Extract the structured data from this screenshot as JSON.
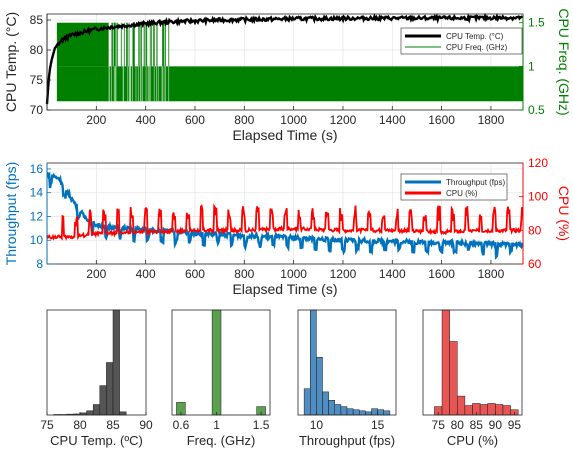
{
  "chart_data": [
    {
      "type": "line",
      "xlabel": "Elapsed Time (s)",
      "ylabel": "CPU Temp. (°C)",
      "ylabel_right": "CPU Freq. (GHz)",
      "xlim": [
        0,
        1930
      ],
      "ylim": [
        70,
        86
      ],
      "ylim_right": [
        0.5,
        1.6
      ],
      "xticks": [
        200,
        400,
        600,
        800,
        1000,
        1200,
        1400,
        1600,
        1800
      ],
      "yticks": [
        70,
        75,
        80,
        85
      ],
      "yticks_right": [
        0.5,
        1,
        1.5
      ],
      "grid": true,
      "legend": "top-right",
      "series": [
        {
          "name": "CPU Temp. (°C)",
          "color": "#000000",
          "axis": "left",
          "x": [
            0,
            5,
            10,
            20,
            30,
            45,
            60,
            80,
            100,
            150,
            200,
            250,
            300,
            400,
            500,
            700,
            1000,
            1300,
            1600,
            1930
          ],
          "y": [
            71,
            74,
            76.5,
            78.5,
            80,
            81,
            81.6,
            82.1,
            82.5,
            83,
            83.5,
            83.8,
            84,
            84.4,
            84.7,
            85,
            85.2,
            85.3,
            85.3,
            85.4
          ]
        },
        {
          "name": "CPU Freq. (GHz)",
          "color": "#008000",
          "axis": "right",
          "x": [
            0,
            40,
            250,
            500,
            1930
          ],
          "y": [
            1.5,
            1.5,
            1.0,
            1.0,
            1.0
          ],
          "note": "toggles between 1.5 and 1.0 until ~500 s, then mostly 1.0 with occasional spikes to 0.6"
        }
      ]
    },
    {
      "type": "line",
      "xlabel": "Elapsed Time (s)",
      "ylabel": "Throughput (fps)",
      "ylabel_right": "CPU (%)",
      "xlim": [
        0,
        1930
      ],
      "ylim": [
        8,
        16.5
      ],
      "ylim_right": [
        60,
        120
      ],
      "xticks": [
        200,
        400,
        600,
        800,
        1000,
        1200,
        1400,
        1600,
        1800
      ],
      "yticks": [
        8,
        10,
        12,
        14,
        16
      ],
      "yticks_right": [
        60,
        80,
        100,
        120
      ],
      "grid": true,
      "legend": "top-right",
      "series": [
        {
          "name": "Throughput (fps)",
          "color": "#0072BD",
          "axis": "left",
          "x": [
            0,
            50,
            100,
            150,
            200,
            300,
            400,
            600,
            800,
            1000,
            1200,
            1400,
            1600,
            1800,
            1930
          ],
          "y": [
            15.6,
            15.2,
            13.5,
            12.0,
            11.3,
            11.0,
            10.9,
            10.6,
            10.4,
            10.2,
            10.0,
            9.9,
            9.8,
            9.7,
            9.6
          ]
        },
        {
          "name": "CPU (%)",
          "color": "#FF0000",
          "axis": "right",
          "x": [
            0,
            100,
            200,
            400,
            600,
            800,
            1000,
            1200,
            1400,
            1600,
            1800,
            1930
          ],
          "y": [
            76,
            76,
            78,
            79,
            80,
            80,
            81,
            80,
            80,
            79,
            80,
            80
          ]
        }
      ]
    },
    {
      "type": "bar",
      "subtype": "histogram",
      "xlabel": "CPU Temp. (ºC)",
      "color": "#555555",
      "xlim": [
        75,
        90
      ],
      "xticks": [
        75,
        80,
        85,
        90
      ],
      "bins": [
        [
          76,
          77
        ],
        [
          77,
          78
        ],
        [
          78,
          79
        ],
        [
          79,
          80
        ],
        [
          80,
          81
        ],
        [
          81,
          82
        ],
        [
          82,
          83
        ],
        [
          83,
          84
        ],
        [
          84,
          85
        ],
        [
          85,
          86
        ],
        [
          86,
          87
        ]
      ],
      "values": [
        0.5,
        0.5,
        0.8,
        1,
        2,
        4,
        10,
        28,
        50,
        100,
        3
      ]
    },
    {
      "type": "bar",
      "subtype": "histogram",
      "xlabel": "Freq. (GHz)",
      "color": "#5AA04E",
      "xlim": [
        0.5,
        1.6
      ],
      "xticks": [
        0.6,
        1,
        1.5
      ],
      "bins": [
        [
          0.55,
          0.65
        ],
        [
          0.95,
          1.05
        ],
        [
          1.45,
          1.55
        ]
      ],
      "values": [
        12,
        100,
        8
      ]
    },
    {
      "type": "bar",
      "subtype": "histogram",
      "xlabel": "Throughput (fps)",
      "color": "#4F8DC2",
      "xlim": [
        8.5,
        16.5
      ],
      "xticks": [
        10,
        15
      ],
      "bins": [
        [
          9,
          9.5
        ],
        [
          9.5,
          10
        ],
        [
          10,
          10.5
        ],
        [
          10.5,
          11
        ],
        [
          11,
          11.5
        ],
        [
          11.5,
          12
        ],
        [
          12,
          12.5
        ],
        [
          12.5,
          13
        ],
        [
          13,
          13.5
        ],
        [
          13.5,
          14
        ],
        [
          14,
          14.5
        ],
        [
          14.5,
          15
        ],
        [
          15,
          15.5
        ],
        [
          15.5,
          16
        ]
      ],
      "values": [
        25,
        100,
        55,
        22,
        14,
        10,
        8,
        6,
        5,
        4,
        3,
        6,
        5,
        4
      ]
    },
    {
      "type": "bar",
      "subtype": "histogram",
      "xlabel": "CPU (%)",
      "color": "#E85555",
      "xlim": [
        71,
        97
      ],
      "xticks": [
        75,
        80,
        85,
        90,
        95
      ],
      "bins": [
        [
          74,
          76
        ],
        [
          76,
          78
        ],
        [
          78,
          80
        ],
        [
          80,
          82
        ],
        [
          82,
          84
        ],
        [
          84,
          86
        ],
        [
          86,
          88
        ],
        [
          88,
          90
        ],
        [
          90,
          92
        ],
        [
          92,
          94
        ],
        [
          94,
          96
        ]
      ],
      "values": [
        8,
        100,
        70,
        18,
        9,
        11,
        10,
        11,
        10,
        9,
        5
      ]
    }
  ]
}
